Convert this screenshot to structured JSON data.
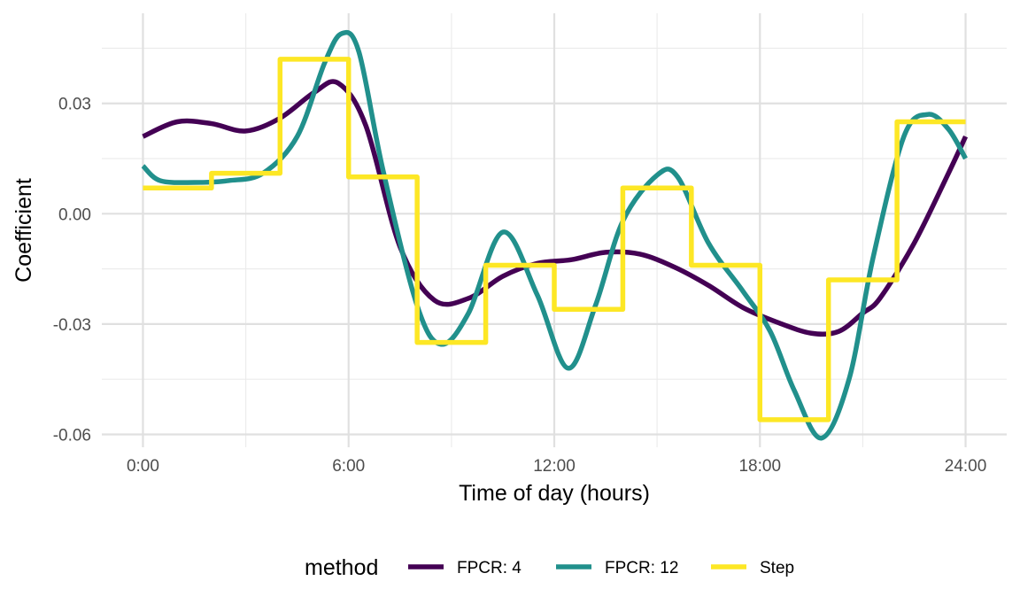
{
  "chart_data": {
    "type": "line",
    "xlabel": "Time of day (hours)",
    "ylabel": "Coefficient",
    "xlim": [
      -1.2,
      25.2
    ],
    "ylim": [
      -0.0635,
      0.0545
    ],
    "x_ticks": [
      0,
      6,
      12,
      18,
      24
    ],
    "x_tick_labels": [
      "0:00",
      "6:00",
      "12:00",
      "18:00",
      "24:00"
    ],
    "x_minor_ticks": [
      3,
      9,
      15,
      21
    ],
    "y_ticks": [
      -0.06,
      -0.03,
      0.0,
      0.03
    ],
    "y_tick_labels": [
      "-0.06",
      "-0.03",
      "0.00",
      "0.03"
    ],
    "y_minor_ticks": [
      -0.045,
      -0.015,
      0.015,
      0.045
    ],
    "grid": true,
    "legend": {
      "title": "method",
      "position": "bottom"
    },
    "series": [
      {
        "name": "FPCR: 4",
        "color": "#440154",
        "shape": "smooth",
        "x": [
          0,
          1,
          2,
          3,
          4,
          5,
          5.7,
          6.5,
          7.5,
          8.5,
          9.5,
          10.5,
          11.5,
          12.5,
          13.5,
          14.5,
          15.5,
          16.5,
          17.5,
          18.5,
          19.5,
          20.3,
          21,
          21.5,
          22.5,
          23.5,
          24
        ],
        "values": [
          0.021,
          0.025,
          0.0245,
          0.0225,
          0.026,
          0.033,
          0.0355,
          0.024,
          -0.009,
          -0.0235,
          -0.023,
          -0.017,
          -0.0135,
          -0.0125,
          -0.0105,
          -0.011,
          -0.0145,
          -0.0195,
          -0.0255,
          -0.0295,
          -0.0325,
          -0.032,
          -0.027,
          -0.023,
          -0.008,
          0.011,
          0.021
        ]
      },
      {
        "name": "FPCR: 12",
        "color": "#21908C",
        "shape": "smooth",
        "x": [
          0,
          0.5,
          1.5,
          2.5,
          3.5,
          4.5,
          5.3,
          5.8,
          6.3,
          7,
          8,
          8.7,
          9.5,
          10.5,
          11.5,
          12.4,
          13.2,
          14,
          15,
          15.6,
          16.5,
          17.5,
          18.3,
          19,
          19.8,
          20.6,
          21.3,
          22.2,
          22.9,
          23.5,
          24
        ],
        "values": [
          0.013,
          0.009,
          0.0085,
          0.009,
          0.011,
          0.021,
          0.041,
          0.049,
          0.044,
          0.012,
          -0.025,
          -0.0355,
          -0.027,
          -0.005,
          -0.022,
          -0.042,
          -0.025,
          -0.002,
          0.0105,
          0.01,
          -0.008,
          -0.021,
          -0.032,
          -0.048,
          -0.061,
          -0.045,
          -0.012,
          0.021,
          0.027,
          0.023,
          0.015
        ]
      },
      {
        "name": "Step",
        "color": "#FDE725",
        "shape": "step",
        "x": [
          0,
          2,
          4,
          6,
          8,
          10,
          12,
          14,
          16,
          18,
          20,
          22
        ],
        "x_end": 24,
        "values": [
          0.007,
          0.011,
          0.042,
          0.01,
          -0.035,
          -0.014,
          -0.026,
          0.007,
          -0.014,
          -0.056,
          -0.018,
          0.025
        ]
      }
    ]
  }
}
